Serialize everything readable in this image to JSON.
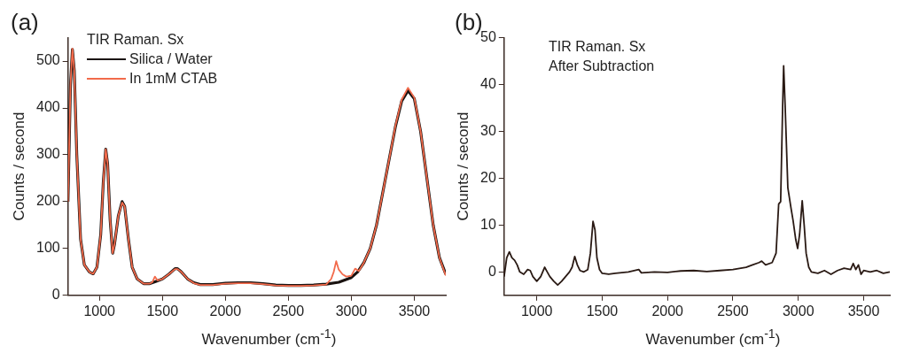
{
  "chart_data": [
    {
      "type": "line",
      "annotations": [
        "(a)"
      ],
      "legend_title": "TIR Raman. Sx",
      "xlabel": "Wavenumber (cm$^{-1}$)",
      "ylabel": "Counts / second",
      "xlim": [
        750,
        3750
      ],
      "xticks": [
        1000,
        1500,
        2000,
        2500,
        3000,
        3500
      ],
      "ylim": [
        0,
        550
      ],
      "yticks": [
        0,
        100,
        200,
        300,
        400,
        500
      ],
      "grid": false,
      "legend": "top left",
      "marker": "none",
      "line_style": "solid",
      "series": [
        {
          "name": "Silica / Water",
          "color": "#1a1210",
          "x": [
            750,
            770,
            785,
            800,
            820,
            850,
            880,
            920,
            950,
            980,
            1010,
            1030,
            1050,
            1065,
            1085,
            1105,
            1120,
            1150,
            1180,
            1200,
            1230,
            1260,
            1300,
            1350,
            1400,
            1450,
            1500,
            1550,
            1600,
            1620,
            1650,
            1700,
            1750,
            1800,
            1900,
            2000,
            2100,
            2200,
            2300,
            2400,
            2500,
            2600,
            2700,
            2800,
            2900,
            3000,
            3050,
            3100,
            3150,
            3200,
            3250,
            3300,
            3350,
            3400,
            3450,
            3500,
            3550,
            3600,
            3650,
            3700,
            3750
          ],
          "values": [
            200,
            450,
            525,
            480,
            300,
            120,
            65,
            50,
            46,
            60,
            130,
            240,
            312,
            280,
            160,
            90,
            110,
            170,
            200,
            190,
            120,
            60,
            35,
            25,
            25,
            30,
            35,
            45,
            57,
            57,
            50,
            35,
            27,
            23,
            23,
            26,
            27,
            27,
            25,
            22,
            21,
            21,
            22,
            24,
            28,
            38,
            50,
            70,
            100,
            150,
            220,
            290,
            360,
            415,
            437,
            420,
            350,
            250,
            150,
            80,
            45
          ]
        },
        {
          "name": "In 1mM CTAB",
          "color": "#f26a4b",
          "x": [
            750,
            770,
            785,
            800,
            820,
            850,
            880,
            920,
            950,
            980,
            1010,
            1030,
            1050,
            1065,
            1085,
            1105,
            1120,
            1150,
            1180,
            1200,
            1230,
            1260,
            1300,
            1350,
            1400,
            1420,
            1440,
            1460,
            1500,
            1550,
            1600,
            1620,
            1650,
            1700,
            1750,
            1800,
            1900,
            2000,
            2100,
            2200,
            2300,
            2400,
            2500,
            2600,
            2700,
            2800,
            2840,
            2860,
            2880,
            2900,
            2930,
            2960,
            3000,
            3030,
            3060,
            3100,
            3150,
            3200,
            3250,
            3300,
            3350,
            3400,
            3450,
            3500,
            3550,
            3600,
            3650,
            3700,
            3750
          ],
          "values": [
            200,
            450,
            527,
            480,
            300,
            120,
            65,
            50,
            46,
            60,
            130,
            240,
            312,
            280,
            160,
            90,
            110,
            170,
            198,
            190,
            120,
            60,
            35,
            25,
            25,
            28,
            40,
            32,
            35,
            45,
            56,
            56,
            50,
            35,
            26,
            22,
            22,
            25,
            26,
            26,
            24,
            21,
            20,
            20,
            21,
            23,
            35,
            50,
            73,
            55,
            45,
            40,
            42,
            57,
            52,
            70,
            100,
            150,
            220,
            290,
            362,
            418,
            443,
            422,
            350,
            250,
            150,
            80,
            42
          ]
        }
      ]
    },
    {
      "type": "line",
      "annotations": [
        "(b)",
        "TIR Raman. Sx",
        "After Subtraction"
      ],
      "xlabel": "Wavenumber (cm$^{-1}$)",
      "ylabel": "Counts / second",
      "xlim": [
        750,
        3700
      ],
      "xticks": [
        1000,
        1500,
        2000,
        2500,
        3000,
        3500
      ],
      "ylim": [
        -5,
        50
      ],
      "yticks": [
        0,
        10,
        20,
        30,
        40,
        50
      ],
      "grid": false,
      "legend": false,
      "marker": "none",
      "line_style": "solid",
      "series": [
        {
          "color": "#2a1a14",
          "x": [
            750,
            770,
            790,
            810,
            830,
            850,
            870,
            900,
            930,
            950,
            970,
            1000,
            1030,
            1060,
            1080,
            1100,
            1130,
            1160,
            1190,
            1220,
            1250,
            1270,
            1290,
            1310,
            1330,
            1360,
            1390,
            1410,
            1430,
            1445,
            1460,
            1480,
            1500,
            1550,
            1600,
            1700,
            1780,
            1800,
            1900,
            2000,
            2100,
            2200,
            2300,
            2400,
            2500,
            2600,
            2650,
            2700,
            2720,
            2750,
            2800,
            2830,
            2850,
            2865,
            2880,
            2888,
            2900,
            2920,
            2945,
            2960,
            2980,
            2995,
            3010,
            3030,
            3045,
            3060,
            3080,
            3100,
            3150,
            3200,
            3250,
            3300,
            3350,
            3400,
            3420,
            3440,
            3460,
            3480,
            3500,
            3550,
            3600,
            3650,
            3700
          ],
          "values": [
            -1,
            3,
            4.3,
            3,
            2.5,
            1.5,
            0,
            -0.5,
            0.5,
            0.3,
            -1,
            -2,
            -1,
            1,
            0,
            -1,
            -2,
            -2.8,
            -2,
            -1,
            0,
            1,
            3.3,
            1.5,
            0.3,
            0,
            0.5,
            4,
            10.8,
            9,
            3,
            0.5,
            -0.3,
            -0.5,
            -0.3,
            0,
            0.5,
            -0.2,
            0,
            -0.1,
            0.2,
            0.3,
            0.1,
            0.3,
            0.5,
            1,
            1.5,
            2,
            2.3,
            1.5,
            2,
            4,
            14.5,
            15,
            35,
            44,
            35,
            18,
            13.5,
            11,
            7,
            5,
            8,
            15.2,
            10,
            4,
            1,
            0,
            -0.3,
            0.3,
            -0.5,
            0.3,
            0.8,
            0.5,
            1.8,
            0.5,
            1.5,
            -0.5,
            0.3,
            0,
            0.3,
            -0.3,
            0
          ]
        }
      ]
    }
  ]
}
